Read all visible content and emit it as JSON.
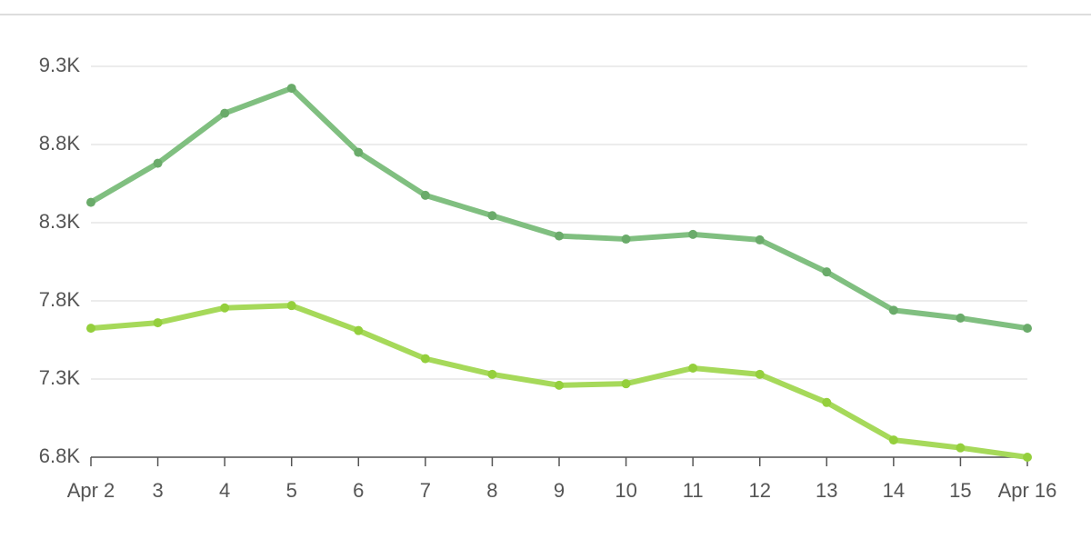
{
  "chart_data": {
    "type": "line",
    "categories": [
      "Apr 2",
      "3",
      "4",
      "5",
      "6",
      "7",
      "8",
      "9",
      "10",
      "11",
      "12",
      "13",
      "14",
      "15",
      "Apr 16"
    ],
    "series": [
      {
        "color": "#80bf80",
        "values": [
          8430,
          8680,
          9000,
          9160,
          8750,
          8475,
          8345,
          8215,
          8195,
          8225,
          8190,
          7985,
          7740,
          7690,
          7625
        ]
      },
      {
        "color": "#a6d95a",
        "values": [
          7625,
          7660,
          7755,
          7770,
          7610,
          7430,
          7330,
          7260,
          7270,
          7370,
          7330,
          7150,
          6910,
          6860,
          6800
        ]
      }
    ],
    "ylim": [
      6800,
      9300
    ],
    "yticks": [
      {
        "value": 6800,
        "label": "6.8K"
      },
      {
        "value": 7300,
        "label": "7.3K"
      },
      {
        "value": 7800,
        "label": "7.8K"
      },
      {
        "value": 8300,
        "label": "8.3K"
      },
      {
        "value": 8800,
        "label": "8.8K"
      },
      {
        "value": 9300,
        "label": "9.3K"
      }
    ],
    "grid": true
  }
}
